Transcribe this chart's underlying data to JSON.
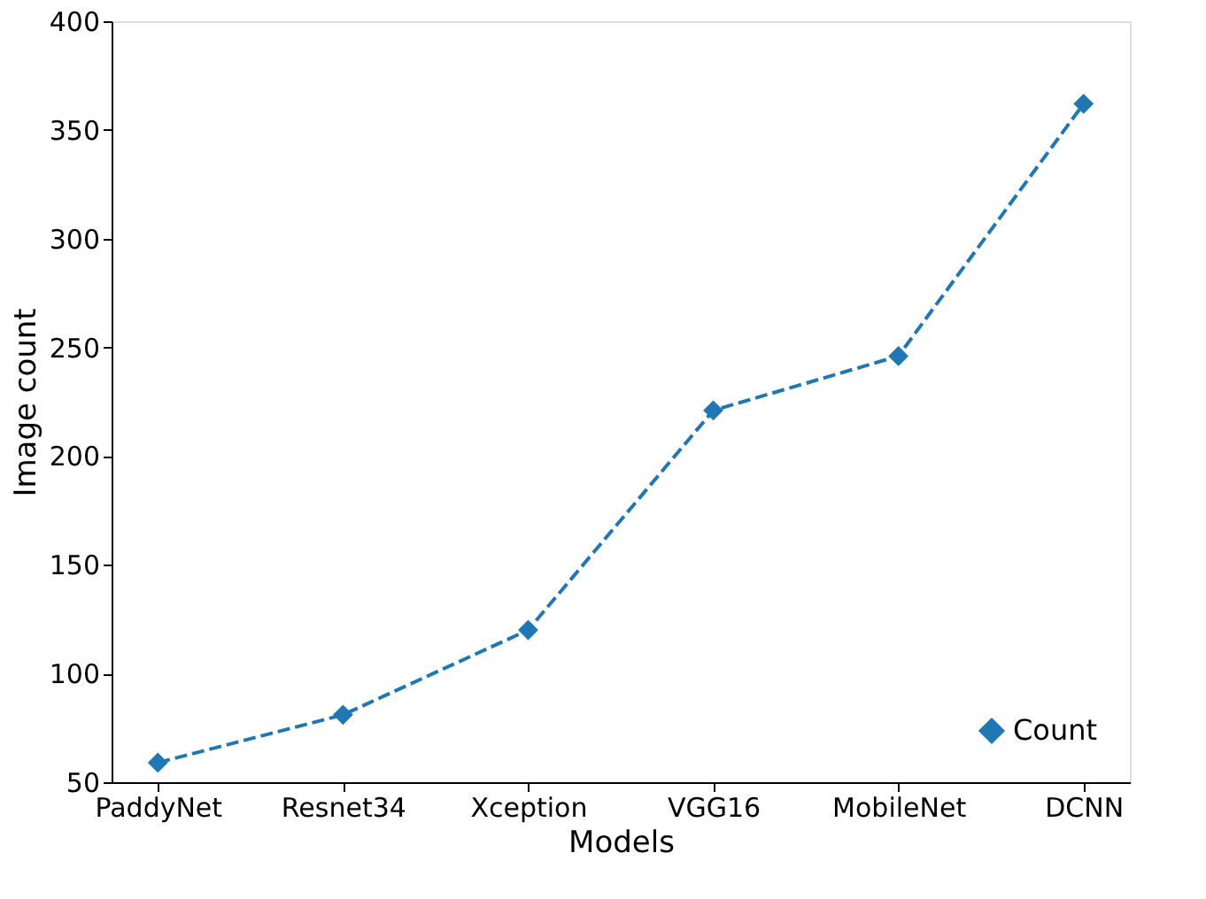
{
  "chart_data": {
    "type": "line",
    "xlabel": "Models",
    "ylabel": "Image count",
    "categories": [
      "PaddyNet",
      "Resnet34",
      "Xception",
      "VGG16",
      "MobileNet",
      "DCNN"
    ],
    "series": [
      {
        "name": "Count",
        "color": "#1f77b4",
        "values": [
          59,
          81,
          120,
          221,
          246,
          362
        ]
      }
    ],
    "ylim": [
      50,
      400
    ],
    "yticks": [
      50,
      100,
      150,
      200,
      250,
      300,
      350,
      400
    ],
    "grid": false,
    "legend": "bottom right",
    "marker": "diamond",
    "line_style": "dashed"
  }
}
